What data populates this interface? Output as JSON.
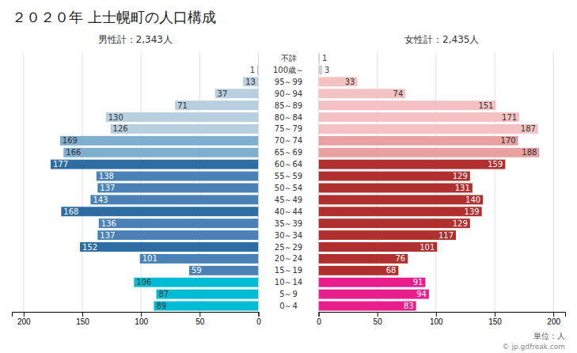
{
  "chart_data": {
    "type": "bar",
    "orientation": "horizontal",
    "title": "２０２０年 上士幌町の人口構成",
    "annotations": [
      "男性計：2,343人",
      "女性計：2,435人",
      "単位：人",
      "© jp.gdfreak.com"
    ],
    "categories": [
      "不詳",
      "100歳～",
      "95～99",
      "90～94",
      "85～89",
      "80～84",
      "75～79",
      "70～74",
      "65～69",
      "60～64",
      "55～59",
      "50～54",
      "45～49",
      "40～44",
      "35～39",
      "30～34",
      "25～29",
      "20～24",
      "15～19",
      "10～14",
      "5～9",
      "0～4"
    ],
    "series": [
      {
        "values": [
          0,
          1,
          13,
          37,
          71,
          130,
          126,
          169,
          166,
          177,
          138,
          137,
          143,
          168,
          136,
          137,
          152,
          101,
          59,
          106,
          87,
          89
        ],
        "colors": [
          "#c0c0c0",
          "#c0c0c0",
          "#b8cfe0",
          "#b8cfe0",
          "#b8cfe0",
          "#b8cfe0",
          "#b8cfe0",
          "#7faecf",
          "#7faecf",
          "#2e6da4",
          "#4a82b8",
          "#4a82b8",
          "#4a82b8",
          "#2e6da4",
          "#4a82b8",
          "#4a82b8",
          "#2e6da4",
          "#4a82b8",
          "#4a82b8",
          "#00bcd4",
          "#00bcd4",
          "#00bcd4"
        ]
      },
      {
        "values": [
          1,
          3,
          33,
          74,
          151,
          171,
          187,
          170,
          188,
          159,
          129,
          131,
          140,
          139,
          129,
          117,
          101,
          76,
          68,
          91,
          94,
          83
        ],
        "colors": [
          "#d0d0d0",
          "#d0d0d0",
          "#f4c2c2",
          "#f4c2c2",
          "#f4c2c2",
          "#f4c2c2",
          "#f4c2c2",
          "#e8a0a0",
          "#e8a0a0",
          "#b03030",
          "#b03030",
          "#b03030",
          "#b03030",
          "#b03030",
          "#b03030",
          "#b03030",
          "#b03030",
          "#b03030",
          "#b03030",
          "#e91e8c",
          "#e91e8c",
          "#e91e8c"
        ]
      }
    ],
    "xlim": [
      0,
      210
    ],
    "xticks": [
      0,
      50,
      100,
      150,
      200
    ],
    "grid": true,
    "data_labels": true
  }
}
